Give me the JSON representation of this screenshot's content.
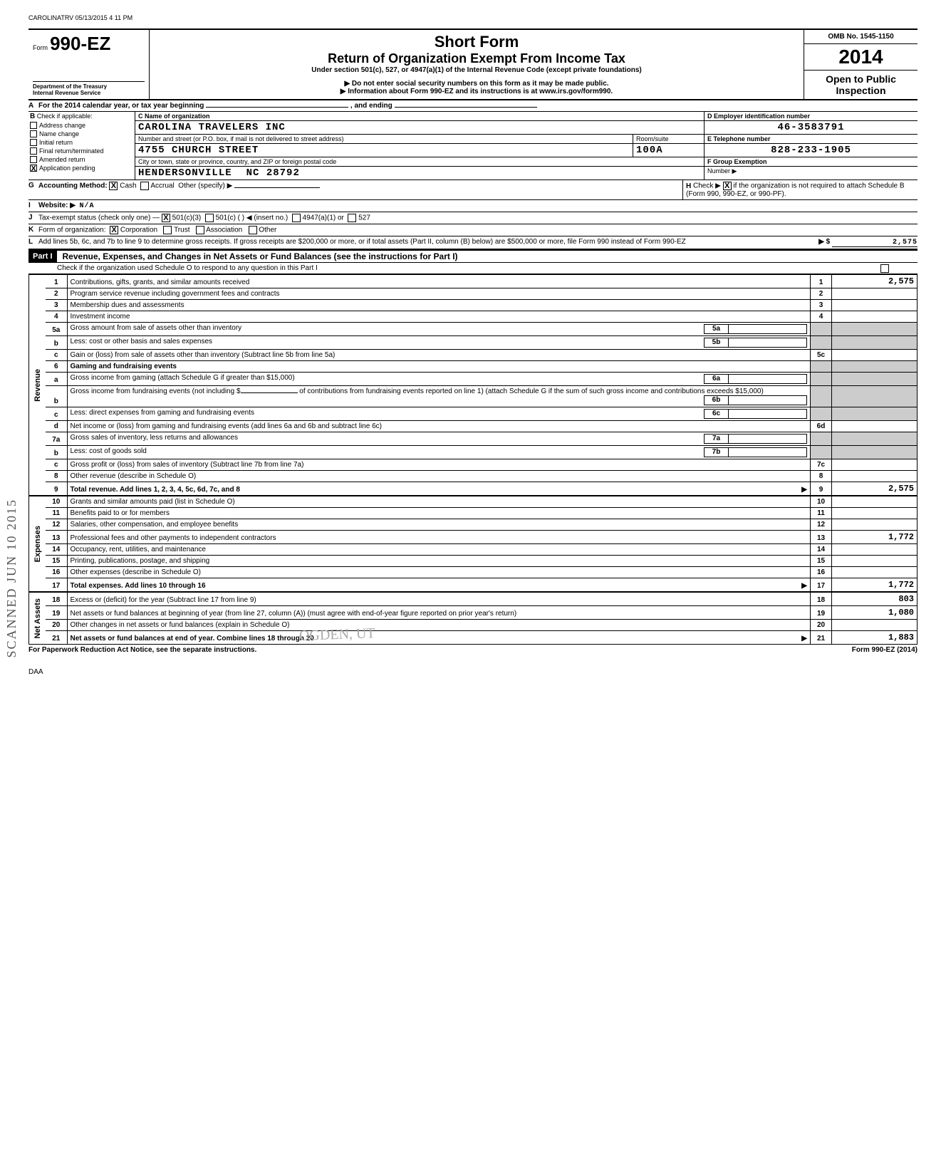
{
  "meta": {
    "stamp_top": "CAROLINATRV 05/13/2015 4 11 PM",
    "form_label_prefix": "Form",
    "form_number": "990-EZ",
    "title_short": "Short Form",
    "title_main": "Return of Organization Exempt From Income Tax",
    "title_under": "Under section 501(c), 527, or 4947(a)(1) of the Internal Revenue Code (except private foundations)",
    "note1": "▶ Do not enter social security numbers on this form as it may be made public.",
    "note2": "▶ Information about Form 990-EZ and its instructions is at www.irs.gov/form990.",
    "dept": "Department of the Treasury",
    "irs": "Internal Revenue Service",
    "omb": "OMB No. 1545-1150",
    "year": "2014",
    "open": "Open to Public Inspection",
    "side_stamp": "SCANNED JUN 10 2015",
    "daa": "DAA",
    "paperwork": "For Paperwork Reduction Act Notice, see the separate instructions.",
    "form_footer": "Form 990-EZ (2014)"
  },
  "A": {
    "label": "For the 2014 calendar year, or tax year beginning",
    "and_ending": ", and ending"
  },
  "B": {
    "label": "Check if applicable:",
    "items": [
      "Address change",
      "Name change",
      "Initial return",
      "Final return/terminated",
      "Amended return",
      "Application pending"
    ],
    "checked_index": 5
  },
  "C": {
    "label": "C  Name of organization",
    "name": "CAROLINA TRAVELERS INC",
    "street_label": "Number and street (or P.O. box, if mail is not delivered to street address)",
    "street": "4755 CHURCH STREET",
    "room_label": "Room/suite",
    "room": "100A",
    "city_label": "City or town, state or province, country, and ZIP or foreign postal code",
    "city": "HENDERSONVILLE",
    "state_zip": "NC  28792"
  },
  "D": {
    "label": "D  Employer identification number",
    "value": "46-3583791"
  },
  "E": {
    "label": "E  Telephone number",
    "value": "828-233-1905"
  },
  "F": {
    "label": "F  Group Exemption",
    "number_label": "Number  ▶"
  },
  "G": {
    "label": "Accounting Method:",
    "cash": "Cash",
    "accrual": "Accrual",
    "other": "Other (specify) ▶",
    "cash_checked": true
  },
  "H": {
    "label": "Check ▶",
    "text": "if the organization is not required to attach Schedule B (Form 990, 990-EZ, or 990-PF).",
    "checked": true
  },
  "I": {
    "label": "Website: ▶",
    "value": "N/A"
  },
  "J": {
    "label": "Tax-exempt status (check only one) —",
    "opt1": "501(c)(3)",
    "opt2": "501(c) (          ) ◀ (insert no.)",
    "opt3": "4947(a)(1) or",
    "opt4": "527",
    "checked": 0
  },
  "K": {
    "label": "Form of organization:",
    "corp": "Corporation",
    "trust": "Trust",
    "assoc": "Association",
    "other": "Other",
    "checked": 0
  },
  "L": {
    "label": "Add lines 5b, 6c, and 7b to line 9 to determine gross receipts. If gross receipts are $200,000 or more, or if total assets (Part II, column (B) below) are $500,000 or more, file Form 990 instead of Form 990-EZ",
    "arrow": "▶  $",
    "value": "2,575"
  },
  "part1": {
    "bar": "Part I",
    "title": "Revenue, Expenses, and Changes in Net Assets or Fund Balances (see the instructions for Part I)",
    "check_note": "Check if the organization used Schedule O to respond to any question in this Part I"
  },
  "sections": {
    "revenue": "Revenue",
    "expenses": "Expenses",
    "netassets": "Net Assets"
  },
  "lines": {
    "1": {
      "desc": "Contributions, gifts, grants, and similar amounts received",
      "amt": "2,575"
    },
    "2": {
      "desc": "Program service revenue including government fees and contracts",
      "amt": ""
    },
    "3": {
      "desc": "Membership dues and assessments",
      "amt": ""
    },
    "4": {
      "desc": "Investment income",
      "amt": ""
    },
    "5a": {
      "desc": "Gross amount from sale of assets other than inventory",
      "box": "5a"
    },
    "5b": {
      "desc": "Less: cost or other basis and sales expenses",
      "box": "5b"
    },
    "5c": {
      "desc": "Gain or (loss) from sale of assets other than inventory (Subtract line 5b from line 5a)",
      "amt": ""
    },
    "6": {
      "desc": "Gaming and fundraising events"
    },
    "6a": {
      "desc": "Gross income from gaming (attach Schedule G if greater than $15,000)",
      "box": "6a"
    },
    "6b": {
      "desc": "Gross income from fundraising events (not including  $",
      "desc2": "of contributions from fundraising events reported on line 1) (attach Schedule G if the sum of such gross income and contributions exceeds $15,000)",
      "box": "6b"
    },
    "6c": {
      "desc": "Less: direct expenses from gaming and fundraising events",
      "box": "6c"
    },
    "6d": {
      "desc": "Net income or (loss) from gaming and fundraising events (add lines 6a and 6b and subtract line 6c)",
      "amt": ""
    },
    "7a": {
      "desc": "Gross sales of inventory, less returns and allowances",
      "box": "7a"
    },
    "7b": {
      "desc": "Less: cost of goods sold",
      "box": "7b"
    },
    "7c": {
      "desc": "Gross profit or (loss) from sales of inventory (Subtract line 7b from line 7a)",
      "amt": ""
    },
    "8": {
      "desc": "Other revenue (describe in Schedule O)",
      "amt": ""
    },
    "9": {
      "desc": "Total revenue. Add lines 1, 2, 3, 4, 5c, 6d, 7c, and 8",
      "amt": "2,575",
      "arrow": "▶"
    },
    "10": {
      "desc": "Grants and similar amounts paid (list in Schedule O)",
      "amt": ""
    },
    "11": {
      "desc": "Benefits paid to or for members",
      "amt": ""
    },
    "12": {
      "desc": "Salaries, other compensation, and employee benefits",
      "amt": ""
    },
    "13": {
      "desc": "Professional fees and other payments to independent contractors",
      "amt": "1,772"
    },
    "14": {
      "desc": "Occupancy, rent, utilities, and maintenance",
      "amt": ""
    },
    "15": {
      "desc": "Printing, publications, postage, and shipping",
      "amt": ""
    },
    "16": {
      "desc": "Other expenses (describe in Schedule O)",
      "amt": ""
    },
    "17": {
      "desc": "Total expenses. Add lines 10 through 16",
      "amt": "1,772",
      "arrow": "▶"
    },
    "18": {
      "desc": "Excess or (deficit) for the year (Subtract line 17 from line 9)",
      "amt": "803"
    },
    "19": {
      "desc": "Net assets or fund balances at beginning of year (from line 27, column (A)) (must agree with end-of-year figure reported on prior year's return)",
      "amt": "1,080"
    },
    "20": {
      "desc": "Other changes in net assets or fund balances (explain in Schedule O)",
      "amt": ""
    },
    "21": {
      "desc": "Net assets or fund balances at end of year. Combine lines 18 through 20",
      "amt": "1,883",
      "arrow": "▶"
    }
  },
  "watermark": "OGDEN, UT"
}
